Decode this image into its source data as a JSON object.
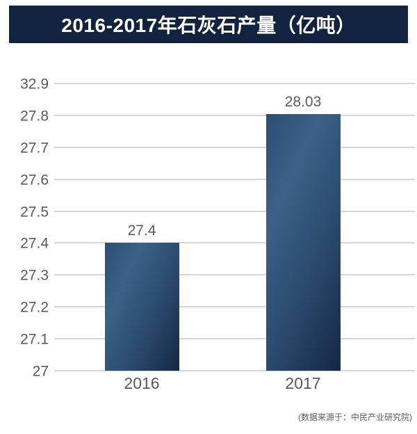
{
  "page": {
    "background": "#ffffff"
  },
  "title_banner": {
    "text": "2016-2017年石灰石产量（亿吨）",
    "bg_color": "#12233f",
    "text_color": "#ffffff"
  },
  "source_note": {
    "text": "(数据来源于：中民产业研究院)"
  },
  "colors": {
    "grid_line": "#d6d6d6",
    "axis_text": "#595959",
    "bar_gradient": [
      "#2d4e72",
      "#3c6088",
      "#2a4a6d",
      "#152743"
    ]
  },
  "chart_data": {
    "type": "bar",
    "title": "2016-2017年石灰石产量（亿吨）",
    "unit": "亿吨",
    "categories": [
      "2016",
      "2017"
    ],
    "values": [
      27.4,
      28.03
    ],
    "data_labels": [
      "27.4",
      "28.03"
    ],
    "y_ticks": [
      27,
      27.1,
      27.2,
      27.3,
      27.4,
      27.5,
      27.6,
      27.7,
      27.8,
      32.9
    ],
    "y_tick_labels": [
      "27",
      "27.1",
      "27.2",
      "27.3",
      "27.4",
      "27.5",
      "27.6",
      "27.7",
      "27.8",
      "32.9"
    ],
    "xlabel": "",
    "ylabel": "",
    "ylim": [
      27,
      32.9
    ],
    "grid": true,
    "legend": false,
    "source": "(数据来源于：中民产业研究院)"
  }
}
